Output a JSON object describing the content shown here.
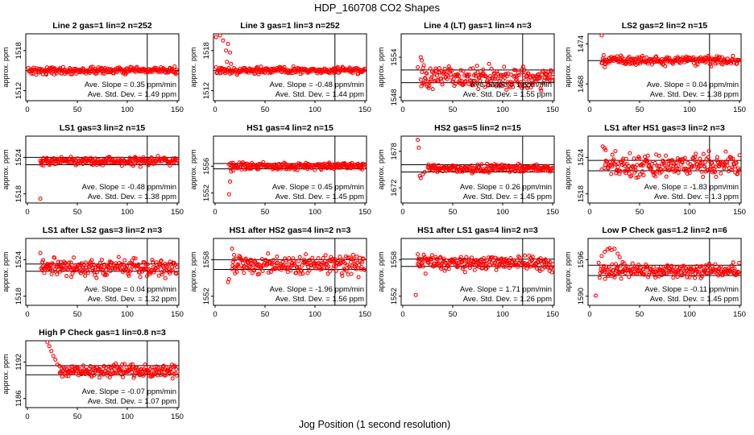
{
  "figure": {
    "title": "HDP_160708  CO2 Shapes",
    "xlabel": "Jog Position (1 second resolution)"
  },
  "chart_data": [
    {
      "type": "scatter",
      "title": "Line 2 gas=1 lin=2 n=252",
      "ylabel": "approx. ppm",
      "xlim": [
        0,
        150
      ],
      "ylim": [
        1510.5,
        1520.5
      ],
      "yticks": [
        1512,
        1518
      ],
      "xticks": [
        0,
        50,
        100,
        150
      ],
      "hlines": [
        1515
      ],
      "vline": 120,
      "start_x": 1,
      "level": 1515,
      "noise": 0.25,
      "transient": [],
      "slope_text": "Ave. Slope =  0.35  ppm/min",
      "sd_text": "Ave. Std. Dev. =  1.49  ppm",
      "marker_color": "#ff0000"
    },
    {
      "type": "scatter",
      "title": "Line 3 gas=1 lin=3 n=252",
      "ylabel": "approx. ppm",
      "xlim": [
        0,
        150
      ],
      "ylim": [
        1510.5,
        1520.5
      ],
      "yticks": [
        1512,
        1518
      ],
      "xticks": [
        0,
        50,
        100,
        150
      ],
      "hlines": [
        1515
      ],
      "vline": 120,
      "start_x": 1,
      "level": 1515,
      "noise": 0.25,
      "transient": [
        [
          1,
          1520
        ],
        [
          5,
          1520.3
        ],
        [
          8,
          1519.5
        ],
        [
          11,
          1518
        ],
        [
          12,
          1516.3
        ],
        [
          13,
          1519
        ],
        [
          15,
          1517.7
        ],
        [
          16,
          1516
        ]
      ],
      "slope_text": "Ave. Slope = -0.48  ppm/min",
      "sd_text": "Ave. Std. Dev. =  1.44  ppm",
      "marker_color": "#ff0000"
    },
    {
      "type": "scatter",
      "title": "Line 4 (LT) gas=1 lin=4 n=3",
      "ylabel": "approx. ppm",
      "xlim": [
        0,
        150
      ],
      "ylim": [
        1547.5,
        1557.5
      ],
      "yticks": [
        1548,
        1554
      ],
      "xticks": [
        0,
        50,
        100,
        150
      ],
      "hlines": [
        1552.1,
        1550.2
      ],
      "vline": 120,
      "start_x": 18,
      "level": 1551,
      "noise": 0.9,
      "transient": [
        [
          15,
          1552.5
        ],
        [
          18,
          1554
        ],
        [
          19,
          1553.5
        ],
        [
          21,
          1552.8
        ]
      ],
      "slope_text": "Ave. Slope =  1  ppm/min",
      "sd_text": "Ave. Std. Dev. =  1.55  ppm",
      "marker_color": "#ff0000"
    },
    {
      "type": "scatter",
      "title": "LS2 gas=2 lin=2 n=15",
      "ylabel": "approx. ppm",
      "xlim": [
        0,
        150
      ],
      "ylim": [
        1465.5,
        1475.5
      ],
      "yticks": [
        1468,
        1474
      ],
      "xticks": [
        0,
        50,
        100,
        150
      ],
      "hlines": [
        1471.5
      ],
      "vline": 120,
      "start_x": 12,
      "level": 1471.5,
      "noise": 0.35,
      "transient": [
        [
          12,
          1475.5
        ],
        [
          14,
          1472.3
        ],
        [
          15,
          1470.5
        ],
        [
          16,
          1471
        ]
      ],
      "slope_text": "Ave. Slope =  0.04  ppm/min",
      "sd_text": "Ave. Std. Dev. =  1.38  ppm",
      "marker_color": "#ff0000"
    },
    {
      "type": "scatter",
      "title": "LS1 gas=3 lin=2 n=15",
      "ylabel": "approx. ppm",
      "xlim": [
        0,
        150
      ],
      "ylim": [
        1516.5,
        1527.5
      ],
      "yticks": [
        1518,
        1524
      ],
      "xticks": [
        0,
        50,
        100,
        150
      ],
      "hlines": [
        1524,
        1522.8
      ],
      "vline": 120,
      "start_x": 13,
      "level": 1523.4,
      "noise": 0.35,
      "transient": [
        [
          13,
          1517.2
        ],
        [
          14,
          1522.8
        ],
        [
          16,
          1523.9
        ]
      ],
      "slope_text": "Ave. Slope = -0.48  ppm/min",
      "sd_text": "Ave. Std. Dev. =  1.38  ppm",
      "marker_color": "#ff0000"
    },
    {
      "type": "scatter",
      "title": "HS1 gas=4 lin=2 n=15",
      "ylabel": "approx. ppm",
      "xlim": [
        0,
        150
      ],
      "ylim": [
        1550.5,
        1560.5
      ],
      "yticks": [
        1552,
        1556
      ],
      "xticks": [
        0,
        50,
        100,
        150
      ],
      "hlines": [
        1556.4,
        1555.6
      ],
      "vline": 120,
      "start_x": 14,
      "level": 1556,
      "noise": 0.25,
      "transient": [
        [
          14,
          1551.8
        ],
        [
          15,
          1553.7
        ],
        [
          16,
          1555.2
        ],
        [
          18,
          1556.5
        ]
      ],
      "slope_text": "Ave. Slope =  0.45  ppm/min",
      "sd_text": "Ave. Std. Dev. =  1.45  ppm",
      "marker_color": "#ff0000"
    },
    {
      "type": "scatter",
      "title": "HS2 gas=5 lin=2 n=15",
      "ylabel": "approx. ppm",
      "xlim": [
        0,
        150
      ],
      "ylim": [
        1669.5,
        1680.5
      ],
      "yticks": [
        1672,
        1678
      ],
      "xticks": [
        0,
        50,
        100,
        150
      ],
      "hlines": [
        1675.8,
        1674.6
      ],
      "vline": 120,
      "start_x": 25,
      "level": 1675.2,
      "noise": 0.3,
      "transient": [
        [
          15,
          1679.9
        ],
        [
          16,
          1678.6
        ],
        [
          17,
          1674
        ],
        [
          18,
          1673.6
        ],
        [
          20,
          1674.2
        ],
        [
          22,
          1674.6
        ]
      ],
      "slope_text": "Ave. Slope =  0.26  ppm/min",
      "sd_text": "Ave. Std. Dev. =  1.45  ppm",
      "marker_color": "#ff0000"
    },
    {
      "type": "scatter",
      "title": "LS1 after HS1 gas=3 lin=2 n=3",
      "ylabel": "approx. ppm",
      "xlim": [
        0,
        150
      ],
      "ylim": [
        1516.5,
        1527.5
      ],
      "yticks": [
        1518,
        1524
      ],
      "xticks": [
        0,
        50,
        100,
        150
      ],
      "hlines": [
        1523.5,
        1521.8
      ],
      "vline": 120,
      "start_x": 15,
      "level": 1522.7,
      "noise": 0.9,
      "transient": [
        [
          12,
          1522
        ],
        [
          13,
          1525.8
        ],
        [
          15,
          1525.5
        ],
        [
          16,
          1525.2
        ]
      ],
      "slope_text": "Ave. Slope = -1.83  ppm/min",
      "sd_text": "Ave. Std. Dev. =  1.3  ppm",
      "marker_color": "#ff0000"
    },
    {
      "type": "scatter",
      "title": "LS1 after LS2 gas=3 lin=2 n=3",
      "ylabel": "approx. ppm",
      "xlim": [
        0,
        150
      ],
      "ylim": [
        1516.5,
        1527.5
      ],
      "yticks": [
        1518,
        1524
      ],
      "xticks": [
        0,
        50,
        100,
        150
      ],
      "hlines": [
        1523.3,
        1522.1
      ],
      "vline": 120,
      "start_x": 14,
      "level": 1522.7,
      "noise": 0.7,
      "transient": [
        [
          13,
          1525.1
        ],
        [
          15,
          1523.6
        ]
      ],
      "slope_text": "Ave. Slope =  0.04  ppm/min",
      "sd_text": "Ave. Std. Dev. =  1.32  ppm",
      "marker_color": "#ff0000"
    },
    {
      "type": "scatter",
      "title": "HS1 after HS2 gas=4 lin=2 n=3",
      "ylabel": "approx. ppm",
      "xlim": [
        0,
        150
      ],
      "ylim": [
        1550.5,
        1561.5
      ],
      "yticks": [
        1552,
        1558
      ],
      "xticks": [
        0,
        50,
        100,
        150
      ],
      "hlines": [
        1558,
        1556.4
      ],
      "vline": 120,
      "start_x": 17,
      "level": 1557.2,
      "noise": 0.75,
      "transient": [
        [
          13,
          1554.3
        ],
        [
          14,
          1554.8
        ],
        [
          17,
          1559.8
        ],
        [
          19,
          1558.8
        ]
      ],
      "slope_text": "Ave. Slope = -1.96  ppm/min",
      "sd_text": "Ave. Std. Dev. =  1.56  ppm",
      "marker_color": "#ff0000"
    },
    {
      "type": "scatter",
      "title": "HS1 after LS1 gas=4 lin=2 n=3",
      "ylabel": "approx. ppm",
      "xlim": [
        0,
        150
      ],
      "ylim": [
        1550.5,
        1561.5
      ],
      "yticks": [
        1552,
        1558
      ],
      "xticks": [
        0,
        50,
        100,
        150
      ],
      "hlines": [
        1558.1,
        1556.9
      ],
      "vline": 120,
      "start_x": 15,
      "level": 1557.5,
      "noise": 0.65,
      "transient": [
        [
          13,
          1552.2
        ],
        [
          15,
          1558.9
        ],
        [
          16,
          1558.2
        ]
      ],
      "slope_text": "Ave. Slope =  1.71  ppm/min",
      "sd_text": "Ave. Std. Dev. =  1.26  ppm",
      "marker_color": "#ff0000"
    },
    {
      "type": "scatter",
      "title": "Low P Check gas=1.2 lin=2 n=6",
      "ylabel": "approx. ppm",
      "xlim": [
        0,
        150
      ],
      "ylim": [
        1588.5,
        1599.5
      ],
      "yticks": [
        1590,
        1596
      ],
      "xticks": [
        0,
        50,
        100,
        150
      ],
      "hlines": [
        1595.1,
        1593.4
      ],
      "vline": 120,
      "start_x": 10,
      "level": 1594.2,
      "noise": 0.55,
      "transient": [
        [
          6,
          1590.1
        ],
        [
          9,
          1595.5
        ],
        [
          12,
          1596.6
        ],
        [
          15,
          1597.3
        ],
        [
          18,
          1597.7
        ],
        [
          20,
          1597.9
        ],
        [
          22,
          1597.6
        ],
        [
          25,
          1597.8
        ],
        [
          28,
          1597
        ],
        [
          30,
          1596.4
        ],
        [
          33,
          1595.6
        ]
      ],
      "slope_text": "Ave. Slope = -0.11  ppm/min",
      "sd_text": "Ave. Std. Dev. =  1.45  ppm",
      "marker_color": "#ff0000"
    },
    {
      "type": "scatter",
      "title": "High P Check gas=1 lin=0.8 n=3",
      "ylabel": "approx. ppm",
      "xlim": [
        0,
        150
      ],
      "ylim": [
        1184.5,
        1195.5
      ],
      "yticks": [
        1186,
        1192
      ],
      "xticks": [
        0,
        50,
        100,
        150
      ],
      "hlines": [
        1191.4,
        1189.9
      ],
      "vline": 120,
      "start_x": 32,
      "level": 1190.6,
      "noise": 0.5,
      "transient": [
        [
          20,
          1195.3
        ],
        [
          22,
          1194.6
        ],
        [
          24,
          1193.8
        ],
        [
          26,
          1193
        ],
        [
          28,
          1192.4
        ],
        [
          30,
          1191.6
        ]
      ],
      "slope_text": "Ave. Slope = -0.07  ppm/min",
      "sd_text": "Ave. Std. Dev. =  1.07  ppm",
      "marker_color": "#ff0000"
    }
  ]
}
